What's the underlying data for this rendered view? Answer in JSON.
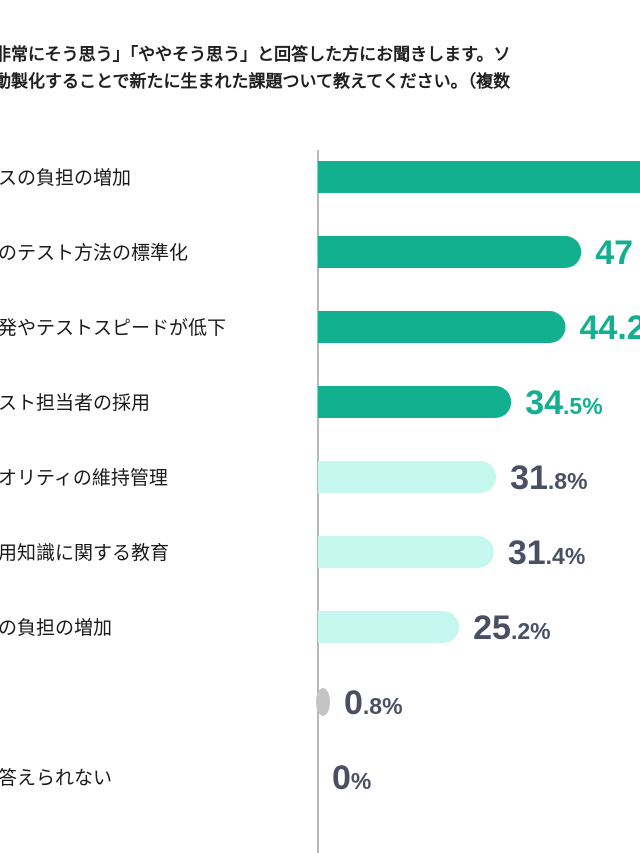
{
  "question": {
    "line1": "非常にそう思う」「ややそう思う」と回答した方にお聞きします。ソ",
    "line2": "動製化することで新たに生まれた課題ついて教えてください。（複数"
  },
  "colors": {
    "top_bar": "#12b08e",
    "top_text": "#12b08e",
    "mid_bar": "#c6f7ee",
    "mid_text": "#4a4f63",
    "gray_bar": "#c4c4c4",
    "axis": "#a0a0a0"
  },
  "chart_data": {
    "type": "bar",
    "orientation": "horizontal",
    "categories": [
      "スの負担の増加",
      "のテスト方法の標準化",
      "発やテストスピードが低下",
      "スト担当者の採用",
      "オリティの維持管理",
      "用知識に関する教育",
      "の負担の増加",
      "",
      "答えられない"
    ],
    "values": [
      null,
      47,
      44.2,
      34.5,
      31.8,
      31.4,
      25.2,
      0.8,
      0
    ],
    "value_labels": [
      {
        "main": "",
        "decimal": ""
      },
      {
        "main": "47",
        "decimal": ""
      },
      {
        "main": "44.2",
        "decimal": ""
      },
      {
        "main": "34",
        "decimal": ".5%"
      },
      {
        "main": "31",
        "decimal": ".8%"
      },
      {
        "main": "31",
        "decimal": ".4%"
      },
      {
        "main": "25",
        "decimal": ".2%"
      },
      {
        "main": "0",
        "decimal": ".8%"
      },
      {
        "main": "0",
        "decimal": "%"
      }
    ],
    "tiers": [
      "top",
      "top",
      "top",
      "top",
      "mid",
      "mid",
      "mid",
      "gray",
      "gray"
    ],
    "grid": false,
    "legend": "none"
  }
}
